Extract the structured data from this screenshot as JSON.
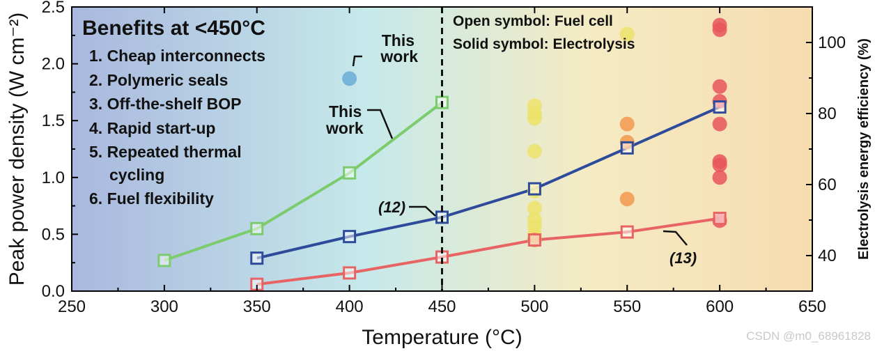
{
  "chart_data": {
    "type": "scatter",
    "xlabel": "Temperature (°C)",
    "ylabel_left": "Peak power density (W cm⁻²)",
    "ylabel_right": "Electrolysis energy efficiency (%)",
    "xlim": [
      250,
      650
    ],
    "ylim_left": [
      0,
      2.5
    ],
    "ylim_right": [
      30,
      110
    ],
    "x_ticks": [
      "250",
      "300",
      "350",
      "400",
      "450",
      "500",
      "550",
      "600",
      "650"
    ],
    "y_ticks_left": [
      "0.0",
      "0.5",
      "1.0",
      "1.5",
      "2.0",
      "2.5"
    ],
    "y_ticks_right": [
      "40",
      "60",
      "80",
      "100"
    ],
    "vline_x": 450,
    "background_gradient": [
      "#a9b8de",
      "#c6e9ea",
      "#f5ebc3",
      "#f7dcb0"
    ],
    "annotations": {
      "benefits_title": "Benefits at <450°C",
      "benefits": [
        "1. Cheap interconnects",
        "2. Polymeric seals",
        "3. Off-the-shelf BOP",
        "4. Rapid start-up",
        "5. Repeated thermal",
        "cycling",
        "6. Fuel flexibility"
      ],
      "symbol_note_1": "Open symbol: Fuel cell",
      "symbol_note_2": "Solid symbol: Electrolysis",
      "this_work_1_line1": "This",
      "this_work_1_line2": "work",
      "this_work_2_line1": "This",
      "this_work_2_line2": "work",
      "ref_12": "(12)",
      "ref_13": "(13)"
    },
    "series": [
      {
        "name": "green",
        "color": "#7ccc6e",
        "marker": "open-square",
        "x": [
          300,
          350,
          400,
          450
        ],
        "y": [
          0.27,
          0.55,
          1.04,
          1.66
        ]
      },
      {
        "name": "blue",
        "color": "#2e4a9a",
        "marker": "open-square",
        "x": [
          350,
          400,
          450,
          500,
          550,
          600
        ],
        "y": [
          0.29,
          0.48,
          0.65,
          0.9,
          1.26,
          1.62
        ]
      },
      {
        "name": "red",
        "color": "#e86464",
        "marker": "open-square",
        "x": [
          350,
          400,
          450,
          500,
          550,
          600
        ],
        "y": [
          0.06,
          0.16,
          0.3,
          0.45,
          0.52,
          0.64
        ]
      }
    ],
    "electrolysis_points": [
      {
        "color": "#6aaad6",
        "points": [
          [
            400,
            1.87
          ]
        ]
      },
      {
        "color": "#ece26a",
        "points": [
          [
            500,
            1.63
          ],
          [
            500,
            1.56
          ],
          [
            500,
            1.52
          ],
          [
            500,
            1.23
          ],
          [
            500,
            0.88
          ],
          [
            500,
            0.73
          ],
          [
            500,
            0.63
          ],
          [
            500,
            0.57
          ],
          [
            500,
            0.5
          ],
          [
            550,
            2.26
          ]
        ]
      },
      {
        "color": "#f2994e",
        "points": [
          [
            500,
            0.45
          ],
          [
            550,
            1.47
          ],
          [
            550,
            1.31
          ],
          [
            550,
            0.81
          ]
        ]
      },
      {
        "color": "#e8555a",
        "points": [
          [
            600,
            2.34
          ],
          [
            600,
            2.3
          ],
          [
            600,
            1.8
          ],
          [
            600,
            1.67
          ],
          [
            600,
            1.47
          ],
          [
            600,
            1.14
          ],
          [
            600,
            1.11
          ],
          [
            600,
            1.0
          ],
          [
            600,
            0.62
          ]
        ]
      }
    ],
    "watermark": "CSDN @m0_68961828"
  }
}
